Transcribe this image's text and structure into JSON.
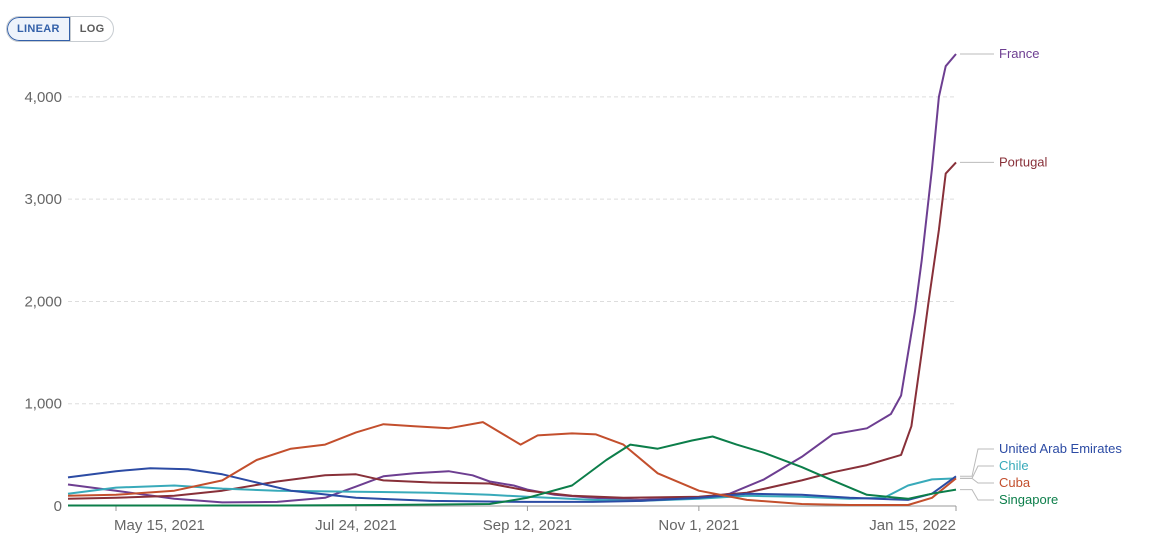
{
  "scale_toggle": {
    "options": [
      "LINEAR",
      "LOG"
    ],
    "selected": "LINEAR"
  },
  "chart_data": {
    "type": "line",
    "title": "",
    "xlabel": "",
    "ylabel": "",
    "x_ticks": [
      {
        "label": "May 15, 2021",
        "date": "2021-05-15"
      },
      {
        "label": "Jul 24, 2021",
        "date": "2021-07-24"
      },
      {
        "label": "Sep 12, 2021",
        "date": "2021-09-12"
      },
      {
        "label": "Nov 1, 2021",
        "date": "2021-11-01"
      },
      {
        "label": "Jan 15, 2022",
        "date": "2022-01-15"
      }
    ],
    "x_range": [
      "2021-05-01",
      "2022-01-15"
    ],
    "y_ticks": [
      {
        "value": 0,
        "label": "0"
      },
      {
        "value": 1000,
        "label": "1,000"
      },
      {
        "value": 2000,
        "label": "2,000"
      },
      {
        "value": 3000,
        "label": "3,000"
      },
      {
        "value": 4000,
        "label": "4,000"
      }
    ],
    "ylim": [
      0,
      4400
    ],
    "grid": "horizontal dashed",
    "legend": "right, end of lines",
    "series": [
      {
        "name": "France",
        "color": "#6d3e91",
        "points": [
          [
            "2021-05-01",
            210
          ],
          [
            "2021-05-15",
            150
          ],
          [
            "2021-06-01",
            70
          ],
          [
            "2021-06-15",
            35
          ],
          [
            "2021-07-01",
            40
          ],
          [
            "2021-07-15",
            80
          ],
          [
            "2021-07-24",
            190
          ],
          [
            "2021-08-01",
            290
          ],
          [
            "2021-08-10",
            320
          ],
          [
            "2021-08-20",
            340
          ],
          [
            "2021-08-27",
            300
          ],
          [
            "2021-09-01",
            240
          ],
          [
            "2021-09-08",
            200
          ],
          [
            "2021-09-12",
            160
          ],
          [
            "2021-09-20",
            110
          ],
          [
            "2021-10-01",
            80
          ],
          [
            "2021-10-15",
            60
          ],
          [
            "2021-11-01",
            80
          ],
          [
            "2021-11-10",
            120
          ],
          [
            "2021-11-20",
            260
          ],
          [
            "2021-12-01",
            480
          ],
          [
            "2021-12-10",
            700
          ],
          [
            "2021-12-20",
            760
          ],
          [
            "2021-12-27",
            900
          ],
          [
            "2021-12-30",
            1080
          ],
          [
            "2022-01-03",
            1900
          ],
          [
            "2022-01-05",
            2400
          ],
          [
            "2022-01-08",
            3300
          ],
          [
            "2022-01-10",
            4000
          ],
          [
            "2022-01-12",
            4300
          ],
          [
            "2022-01-15",
            4420
          ]
        ]
      },
      {
        "name": "Portugal",
        "color": "#883039",
        "points": [
          [
            "2021-05-01",
            70
          ],
          [
            "2021-05-15",
            80
          ],
          [
            "2021-06-01",
            100
          ],
          [
            "2021-06-15",
            150
          ],
          [
            "2021-07-01",
            240
          ],
          [
            "2021-07-15",
            300
          ],
          [
            "2021-07-24",
            310
          ],
          [
            "2021-08-01",
            250
          ],
          [
            "2021-08-15",
            230
          ],
          [
            "2021-09-01",
            220
          ],
          [
            "2021-09-12",
            150
          ],
          [
            "2021-09-25",
            100
          ],
          [
            "2021-10-10",
            80
          ],
          [
            "2021-11-01",
            90
          ],
          [
            "2021-11-15",
            130
          ],
          [
            "2021-12-01",
            250
          ],
          [
            "2021-12-10",
            330
          ],
          [
            "2021-12-20",
            400
          ],
          [
            "2021-12-30",
            500
          ],
          [
            "2022-01-02",
            780
          ],
          [
            "2022-01-05",
            1500
          ],
          [
            "2022-01-07",
            2000
          ],
          [
            "2022-01-10",
            2700
          ],
          [
            "2022-01-12",
            3250
          ],
          [
            "2022-01-15",
            3360
          ]
        ]
      },
      {
        "name": "Chile",
        "color": "#38aaba",
        "points": [
          [
            "2021-05-01",
            120
          ],
          [
            "2021-05-15",
            180
          ],
          [
            "2021-06-01",
            200
          ],
          [
            "2021-06-15",
            170
          ],
          [
            "2021-07-01",
            150
          ],
          [
            "2021-07-24",
            140
          ],
          [
            "2021-08-15",
            130
          ],
          [
            "2021-09-01",
            110
          ],
          [
            "2021-09-12",
            90
          ],
          [
            "2021-10-01",
            60
          ],
          [
            "2021-10-15",
            50
          ],
          [
            "2021-11-01",
            70
          ],
          [
            "2021-11-15",
            100
          ],
          [
            "2021-12-01",
            90
          ],
          [
            "2021-12-15",
            70
          ],
          [
            "2021-12-25",
            80
          ],
          [
            "2022-01-01",
            200
          ],
          [
            "2022-01-08",
            260
          ],
          [
            "2022-01-15",
            270
          ]
        ]
      },
      {
        "name": "United Arab Emirates",
        "color": "#2c4ba4",
        "points": [
          [
            "2021-05-01",
            280
          ],
          [
            "2021-05-15",
            340
          ],
          [
            "2021-05-25",
            370
          ],
          [
            "2021-06-05",
            360
          ],
          [
            "2021-06-15",
            310
          ],
          [
            "2021-06-25",
            230
          ],
          [
            "2021-07-05",
            150
          ],
          [
            "2021-07-24",
            80
          ],
          [
            "2021-08-15",
            50
          ],
          [
            "2021-09-12",
            40
          ],
          [
            "2021-10-01",
            40
          ],
          [
            "2021-10-15",
            50
          ],
          [
            "2021-11-01",
            80
          ],
          [
            "2021-11-15",
            120
          ],
          [
            "2021-12-01",
            110
          ],
          [
            "2021-12-15",
            80
          ],
          [
            "2022-01-01",
            60
          ],
          [
            "2022-01-08",
            120
          ],
          [
            "2022-01-15",
            290
          ]
        ]
      },
      {
        "name": "Cuba",
        "color": "#c34f2d",
        "points": [
          [
            "2021-05-01",
            100
          ],
          [
            "2021-05-15",
            110
          ],
          [
            "2021-06-01",
            150
          ],
          [
            "2021-06-15",
            250
          ],
          [
            "2021-06-25",
            450
          ],
          [
            "2021-07-05",
            560
          ],
          [
            "2021-07-15",
            600
          ],
          [
            "2021-07-24",
            720
          ],
          [
            "2021-08-01",
            800
          ],
          [
            "2021-08-10",
            780
          ],
          [
            "2021-08-20",
            760
          ],
          [
            "2021-08-30",
            820
          ],
          [
            "2021-09-05",
            700
          ],
          [
            "2021-09-10",
            600
          ],
          [
            "2021-09-15",
            690
          ],
          [
            "2021-09-25",
            710
          ],
          [
            "2021-10-02",
            700
          ],
          [
            "2021-10-10",
            600
          ],
          [
            "2021-10-20",
            320
          ],
          [
            "2021-11-01",
            150
          ],
          [
            "2021-11-15",
            60
          ],
          [
            "2021-12-01",
            20
          ],
          [
            "2021-12-15",
            10
          ],
          [
            "2022-01-01",
            10
          ],
          [
            "2022-01-08",
            80
          ],
          [
            "2022-01-15",
            270
          ]
        ]
      },
      {
        "name": "Singapore",
        "color": "#0c7e4a",
        "points": [
          [
            "2021-05-01",
            5
          ],
          [
            "2021-06-01",
            5
          ],
          [
            "2021-07-01",
            5
          ],
          [
            "2021-08-01",
            10
          ],
          [
            "2021-09-01",
            20
          ],
          [
            "2021-09-12",
            80
          ],
          [
            "2021-09-25",
            200
          ],
          [
            "2021-10-05",
            450
          ],
          [
            "2021-10-12",
            600
          ],
          [
            "2021-10-20",
            560
          ],
          [
            "2021-10-30",
            640
          ],
          [
            "2021-11-05",
            680
          ],
          [
            "2021-11-12",
            600
          ],
          [
            "2021-11-20",
            520
          ],
          [
            "2021-12-01",
            380
          ],
          [
            "2021-12-10",
            250
          ],
          [
            "2021-12-20",
            110
          ],
          [
            "2022-01-01",
            70
          ],
          [
            "2022-01-08",
            120
          ],
          [
            "2022-01-15",
            160
          ]
        ]
      }
    ]
  }
}
